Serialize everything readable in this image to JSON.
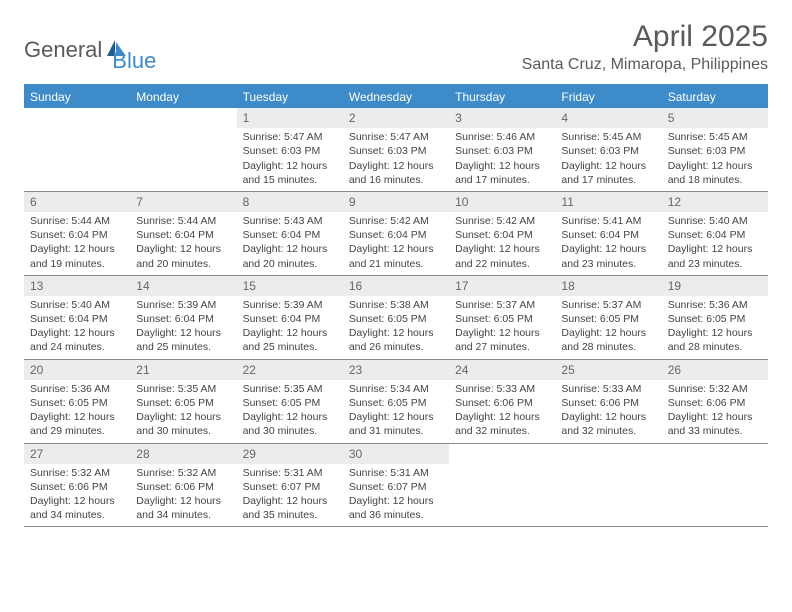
{
  "logo": {
    "text1": "General",
    "text2": "Blue"
  },
  "title": "April 2025",
  "location": "Santa Cruz, Mimaropa, Philippines",
  "colors": {
    "header_bg": "#3d8bc9",
    "header_text": "#ffffff",
    "daynum_bg": "#ececec",
    "text": "#444444",
    "rule": "#888888"
  },
  "weekdays": [
    "Sunday",
    "Monday",
    "Tuesday",
    "Wednesday",
    "Thursday",
    "Friday",
    "Saturday"
  ],
  "weeks": [
    [
      {
        "n": "",
        "sr": "",
        "ss": "",
        "dl": ""
      },
      {
        "n": "",
        "sr": "",
        "ss": "",
        "dl": ""
      },
      {
        "n": "1",
        "sr": "Sunrise: 5:47 AM",
        "ss": "Sunset: 6:03 PM",
        "dl": "Daylight: 12 hours and 15 minutes."
      },
      {
        "n": "2",
        "sr": "Sunrise: 5:47 AM",
        "ss": "Sunset: 6:03 PM",
        "dl": "Daylight: 12 hours and 16 minutes."
      },
      {
        "n": "3",
        "sr": "Sunrise: 5:46 AM",
        "ss": "Sunset: 6:03 PM",
        "dl": "Daylight: 12 hours and 17 minutes."
      },
      {
        "n": "4",
        "sr": "Sunrise: 5:45 AM",
        "ss": "Sunset: 6:03 PM",
        "dl": "Daylight: 12 hours and 17 minutes."
      },
      {
        "n": "5",
        "sr": "Sunrise: 5:45 AM",
        "ss": "Sunset: 6:03 PM",
        "dl": "Daylight: 12 hours and 18 minutes."
      }
    ],
    [
      {
        "n": "6",
        "sr": "Sunrise: 5:44 AM",
        "ss": "Sunset: 6:04 PM",
        "dl": "Daylight: 12 hours and 19 minutes."
      },
      {
        "n": "7",
        "sr": "Sunrise: 5:44 AM",
        "ss": "Sunset: 6:04 PM",
        "dl": "Daylight: 12 hours and 20 minutes."
      },
      {
        "n": "8",
        "sr": "Sunrise: 5:43 AM",
        "ss": "Sunset: 6:04 PM",
        "dl": "Daylight: 12 hours and 20 minutes."
      },
      {
        "n": "9",
        "sr": "Sunrise: 5:42 AM",
        "ss": "Sunset: 6:04 PM",
        "dl": "Daylight: 12 hours and 21 minutes."
      },
      {
        "n": "10",
        "sr": "Sunrise: 5:42 AM",
        "ss": "Sunset: 6:04 PM",
        "dl": "Daylight: 12 hours and 22 minutes."
      },
      {
        "n": "11",
        "sr": "Sunrise: 5:41 AM",
        "ss": "Sunset: 6:04 PM",
        "dl": "Daylight: 12 hours and 23 minutes."
      },
      {
        "n": "12",
        "sr": "Sunrise: 5:40 AM",
        "ss": "Sunset: 6:04 PM",
        "dl": "Daylight: 12 hours and 23 minutes."
      }
    ],
    [
      {
        "n": "13",
        "sr": "Sunrise: 5:40 AM",
        "ss": "Sunset: 6:04 PM",
        "dl": "Daylight: 12 hours and 24 minutes."
      },
      {
        "n": "14",
        "sr": "Sunrise: 5:39 AM",
        "ss": "Sunset: 6:04 PM",
        "dl": "Daylight: 12 hours and 25 minutes."
      },
      {
        "n": "15",
        "sr": "Sunrise: 5:39 AM",
        "ss": "Sunset: 6:04 PM",
        "dl": "Daylight: 12 hours and 25 minutes."
      },
      {
        "n": "16",
        "sr": "Sunrise: 5:38 AM",
        "ss": "Sunset: 6:05 PM",
        "dl": "Daylight: 12 hours and 26 minutes."
      },
      {
        "n": "17",
        "sr": "Sunrise: 5:37 AM",
        "ss": "Sunset: 6:05 PM",
        "dl": "Daylight: 12 hours and 27 minutes."
      },
      {
        "n": "18",
        "sr": "Sunrise: 5:37 AM",
        "ss": "Sunset: 6:05 PM",
        "dl": "Daylight: 12 hours and 28 minutes."
      },
      {
        "n": "19",
        "sr": "Sunrise: 5:36 AM",
        "ss": "Sunset: 6:05 PM",
        "dl": "Daylight: 12 hours and 28 minutes."
      }
    ],
    [
      {
        "n": "20",
        "sr": "Sunrise: 5:36 AM",
        "ss": "Sunset: 6:05 PM",
        "dl": "Daylight: 12 hours and 29 minutes."
      },
      {
        "n": "21",
        "sr": "Sunrise: 5:35 AM",
        "ss": "Sunset: 6:05 PM",
        "dl": "Daylight: 12 hours and 30 minutes."
      },
      {
        "n": "22",
        "sr": "Sunrise: 5:35 AM",
        "ss": "Sunset: 6:05 PM",
        "dl": "Daylight: 12 hours and 30 minutes."
      },
      {
        "n": "23",
        "sr": "Sunrise: 5:34 AM",
        "ss": "Sunset: 6:05 PM",
        "dl": "Daylight: 12 hours and 31 minutes."
      },
      {
        "n": "24",
        "sr": "Sunrise: 5:33 AM",
        "ss": "Sunset: 6:06 PM",
        "dl": "Daylight: 12 hours and 32 minutes."
      },
      {
        "n": "25",
        "sr": "Sunrise: 5:33 AM",
        "ss": "Sunset: 6:06 PM",
        "dl": "Daylight: 12 hours and 32 minutes."
      },
      {
        "n": "26",
        "sr": "Sunrise: 5:32 AM",
        "ss": "Sunset: 6:06 PM",
        "dl": "Daylight: 12 hours and 33 minutes."
      }
    ],
    [
      {
        "n": "27",
        "sr": "Sunrise: 5:32 AM",
        "ss": "Sunset: 6:06 PM",
        "dl": "Daylight: 12 hours and 34 minutes."
      },
      {
        "n": "28",
        "sr": "Sunrise: 5:32 AM",
        "ss": "Sunset: 6:06 PM",
        "dl": "Daylight: 12 hours and 34 minutes."
      },
      {
        "n": "29",
        "sr": "Sunrise: 5:31 AM",
        "ss": "Sunset: 6:07 PM",
        "dl": "Daylight: 12 hours and 35 minutes."
      },
      {
        "n": "30",
        "sr": "Sunrise: 5:31 AM",
        "ss": "Sunset: 6:07 PM",
        "dl": "Daylight: 12 hours and 36 minutes."
      },
      {
        "n": "",
        "sr": "",
        "ss": "",
        "dl": ""
      },
      {
        "n": "",
        "sr": "",
        "ss": "",
        "dl": ""
      },
      {
        "n": "",
        "sr": "",
        "ss": "",
        "dl": ""
      }
    ]
  ]
}
